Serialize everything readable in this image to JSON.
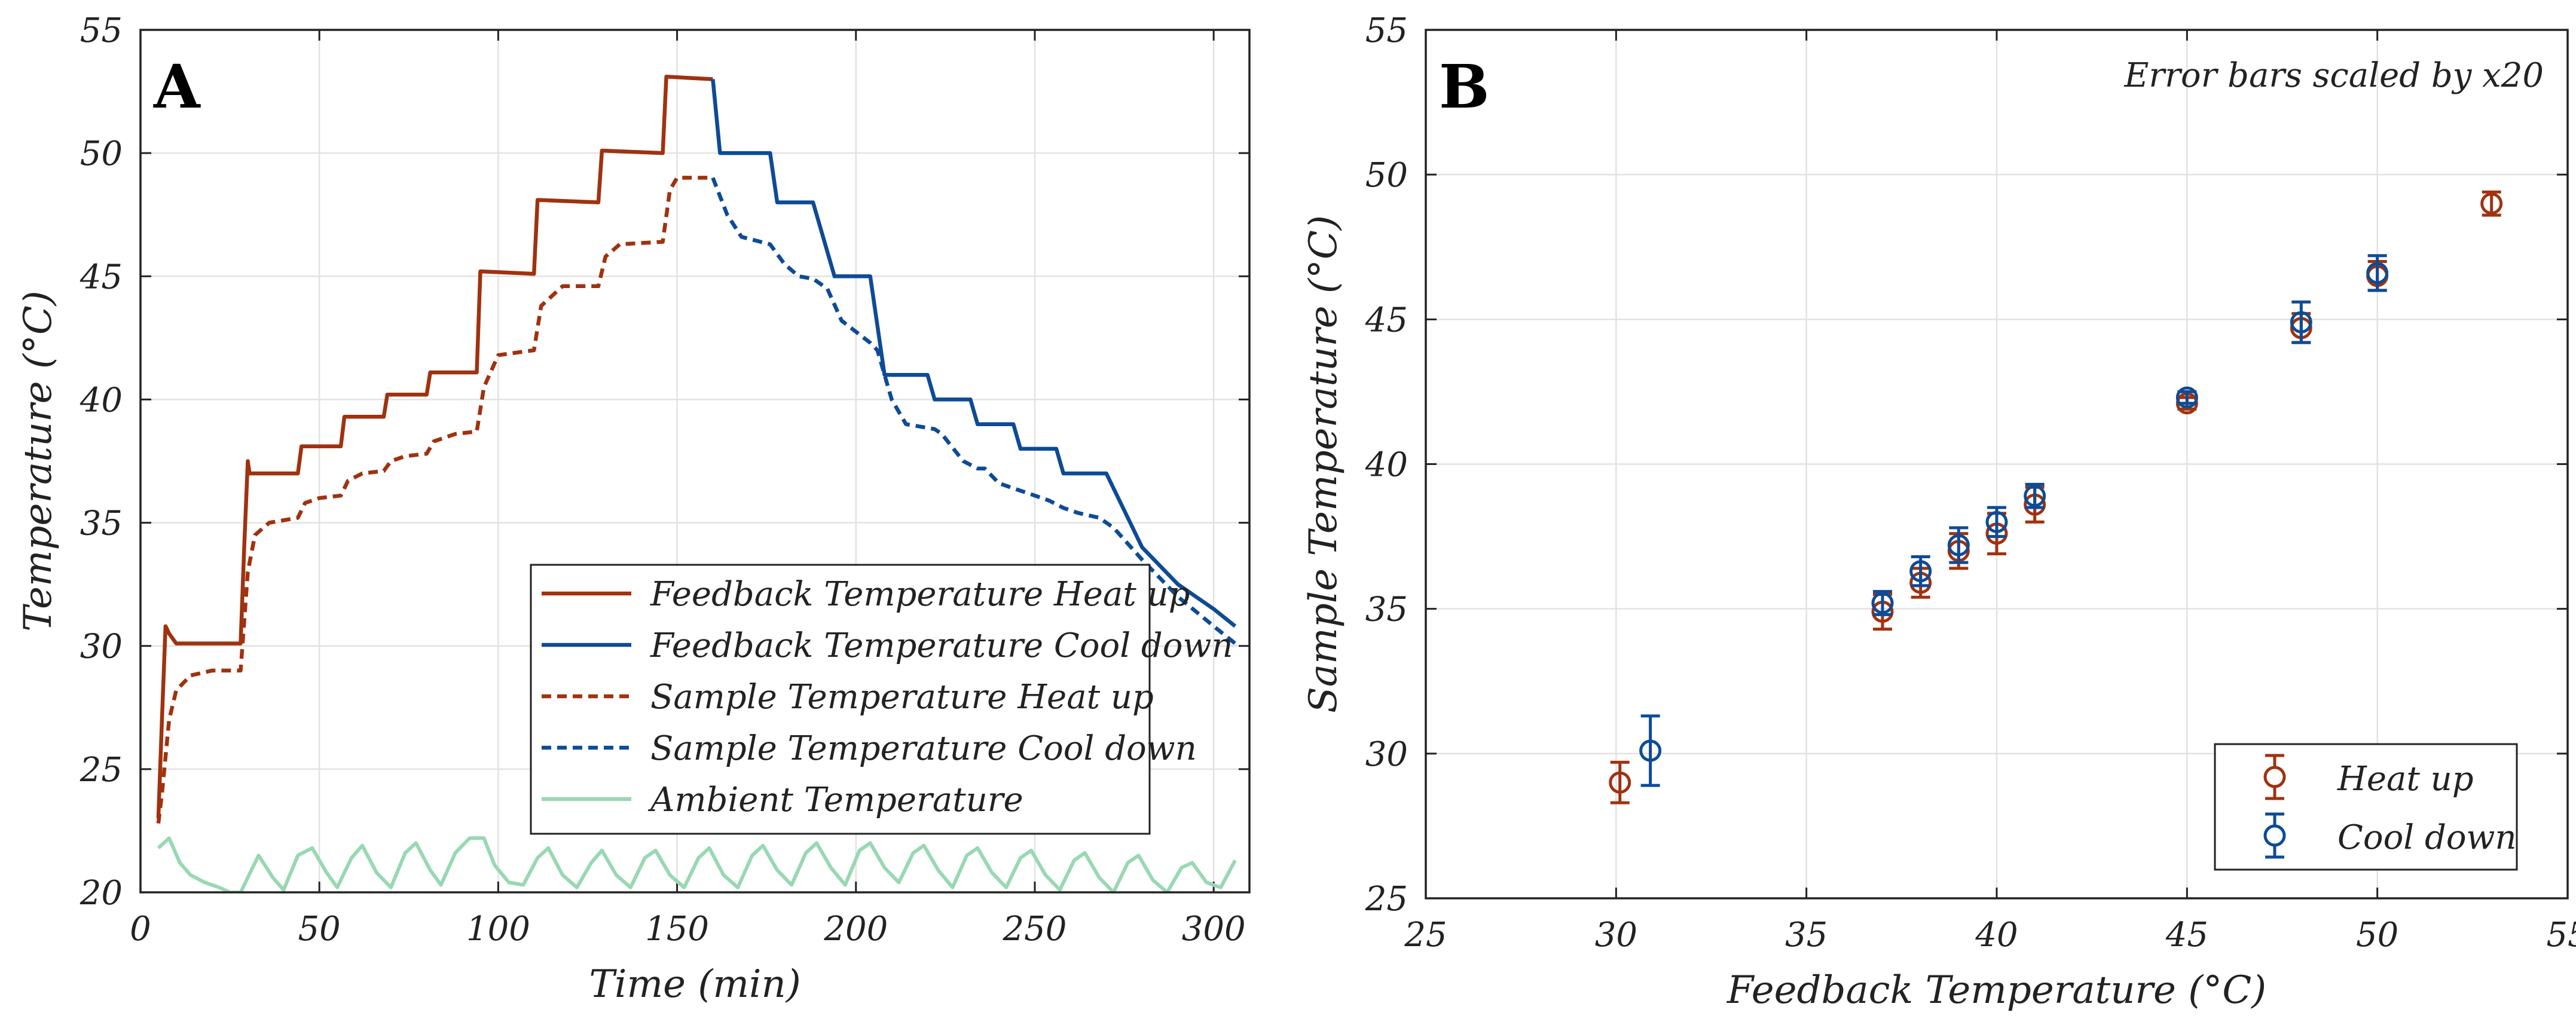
{
  "colors": {
    "heat": "#A0320F",
    "cool": "#0E4B96",
    "ambient": "#98D8B2",
    "grid": "#E2E2E2",
    "axis": "#222222"
  },
  "chart_data": [
    {
      "panel_label": "A",
      "type": "line",
      "xlabel": "Time (min)",
      "ylabel": "Temperature (°C)",
      "xlim": [
        0,
        310
      ],
      "ylim": [
        20,
        55
      ],
      "xticks": [
        "0",
        "50",
        "100",
        "150",
        "200",
        "250",
        "300"
      ],
      "yticks": [
        "20",
        "25",
        "30",
        "35",
        "40",
        "45",
        "50",
        "55"
      ],
      "grid": true,
      "legend_position": "lower-right",
      "series": [
        {
          "name": "Feedback Temperature Heat up",
          "color": "heat",
          "style": "solid",
          "x": [
            5,
            6,
            7,
            8,
            10,
            12,
            28,
            29,
            30,
            30.5,
            44,
            45,
            56,
            57,
            68,
            69,
            80,
            81,
            94,
            95,
            110,
            111,
            128,
            129,
            146,
            147,
            160
          ],
          "y": [
            23,
            27,
            30.8,
            30.5,
            30.1,
            30.1,
            30.1,
            34,
            37.5,
            37,
            37,
            38.1,
            38.1,
            39.3,
            39.3,
            40.2,
            40.2,
            41.1,
            41.1,
            45.2,
            45.1,
            48.1,
            48,
            50.1,
            50,
            53.1,
            53
          ]
        },
        {
          "name": "Feedback Temperature Cool down",
          "color": "cool",
          "style": "solid",
          "x": [
            160,
            162,
            176,
            178,
            188,
            194,
            204,
            208,
            220,
            222,
            232,
            234,
            244,
            246,
            256,
            258,
            268,
            270,
            275,
            280,
            290,
            300,
            306
          ],
          "y": [
            53,
            50,
            50,
            48,
            48,
            45,
            45,
            41,
            41,
            40,
            40,
            39,
            39,
            38,
            38,
            37,
            37,
            37,
            35.5,
            34,
            32.5,
            31.5,
            30.8
          ]
        },
        {
          "name": "Sample Temperature Heat up",
          "color": "heat",
          "style": "dashed",
          "x": [
            5,
            6,
            8,
            10,
            14,
            20,
            28,
            30,
            32,
            36,
            44,
            46,
            50,
            56,
            58,
            62,
            68,
            70,
            74,
            80,
            82,
            88,
            94,
            96,
            100,
            110,
            112,
            118,
            128,
            130,
            134,
            146,
            148,
            150,
            160
          ],
          "y": [
            22.8,
            24,
            27,
            28.2,
            28.8,
            29,
            29,
            33,
            34.5,
            35,
            35.2,
            35.8,
            36,
            36.1,
            36.7,
            37,
            37.1,
            37.5,
            37.7,
            37.8,
            38.3,
            38.6,
            38.7,
            40.5,
            41.8,
            42,
            43.8,
            44.6,
            44.6,
            45.8,
            46.3,
            46.4,
            48.5,
            49,
            49
          ]
        },
        {
          "name": "Sample Temperature Cool down",
          "color": "cool",
          "style": "dashed",
          "x": [
            160,
            164,
            168,
            176,
            180,
            184,
            188,
            192,
            196,
            204,
            206,
            210,
            214,
            222,
            224,
            230,
            234,
            236,
            240,
            246,
            248,
            254,
            258,
            262,
            268,
            272,
            280,
            290,
            300,
            306
          ],
          "y": [
            49,
            47.5,
            46.6,
            46.3,
            45.5,
            45,
            44.9,
            44.5,
            43.2,
            42.3,
            42,
            40,
            39,
            38.8,
            38.6,
            37.5,
            37.2,
            37.2,
            36.6,
            36.3,
            36.2,
            35.9,
            35.6,
            35.4,
            35.2,
            34.8,
            33.5,
            32,
            30.8,
            30.1
          ]
        },
        {
          "name": "Ambient Temperature",
          "color": "ambient",
          "style": "solid",
          "x": [
            5,
            8,
            11,
            14,
            18,
            22,
            25,
            28,
            33,
            37,
            40,
            44,
            48,
            52,
            55,
            59,
            62,
            66,
            70,
            74,
            77,
            81,
            84,
            88,
            92,
            96,
            99,
            103,
            107,
            111,
            114,
            118,
            122,
            126,
            129,
            133,
            137,
            141,
            144,
            148,
            152,
            156,
            159,
            163,
            167,
            171,
            174,
            178,
            182,
            186,
            189,
            193,
            197,
            201,
            204,
            208,
            212,
            216,
            219,
            223,
            227,
            231,
            234,
            238,
            242,
            246,
            249,
            253,
            257,
            261,
            264,
            268,
            272,
            276,
            279,
            283,
            287,
            291,
            294,
            298,
            302,
            306
          ],
          "y": [
            21.8,
            22.2,
            21.2,
            20.7,
            20.4,
            20.2,
            20,
            20,
            21.5,
            20.6,
            20.1,
            21.5,
            21.8,
            20.8,
            20.2,
            21.4,
            21.9,
            20.8,
            20.2,
            21.6,
            22,
            20.9,
            20.3,
            21.6,
            22.2,
            22.2,
            21.1,
            20.4,
            20.3,
            21.4,
            21.8,
            20.7,
            20.2,
            21.2,
            21.7,
            20.7,
            20.2,
            21.4,
            21.7,
            20.7,
            20.2,
            21.4,
            21.8,
            20.7,
            20.2,
            21.5,
            21.9,
            20.9,
            20.3,
            21.6,
            22,
            21,
            20.3,
            21.7,
            22,
            21,
            20.4,
            21.6,
            21.9,
            20.9,
            20.2,
            21.5,
            21.8,
            20.8,
            20.2,
            21.4,
            21.7,
            20.7,
            20.1,
            21.3,
            21.6,
            20.6,
            20,
            21.2,
            21.5,
            20.5,
            20,
            21,
            21.2,
            20.4,
            20.2,
            21.3
          ]
        }
      ]
    },
    {
      "panel_label": "B",
      "type": "scatter",
      "xlabel": "Feedback Temperature (°C)",
      "ylabel": "Sample Temperature (°C)",
      "xlim": [
        25,
        55
      ],
      "ylim": [
        25,
        55
      ],
      "xticks": [
        "25",
        "30",
        "35",
        "40",
        "45",
        "50",
        "55"
      ],
      "yticks": [
        "25",
        "30",
        "35",
        "40",
        "45",
        "50",
        "55"
      ],
      "grid": true,
      "annotation": "Error bars scaled by x20",
      "legend_position": "lower-right",
      "series": [
        {
          "name": "Heat up",
          "color": "heat",
          "x": [
            30.1,
            37,
            38,
            39,
            40,
            41,
            45,
            48,
            50,
            53
          ],
          "y": [
            29,
            34.9,
            35.9,
            37,
            37.6,
            38.6,
            42.1,
            44.7,
            46.5,
            49
          ],
          "err": [
            0.7,
            0.6,
            0.5,
            0.6,
            0.7,
            0.6,
            0.2,
            0.5,
            0.5,
            0.4
          ]
        },
        {
          "name": "Cool down",
          "color": "cool",
          "x": [
            30.9,
            37,
            38,
            39,
            40,
            41,
            45,
            48,
            50
          ],
          "y": [
            30.1,
            35.2,
            36.3,
            37.2,
            38,
            38.9,
            42.3,
            44.9,
            46.6
          ],
          "err": [
            1.2,
            0.4,
            0.5,
            0.6,
            0.5,
            0.4,
            0.2,
            0.7,
            0.6
          ]
        }
      ]
    }
  ]
}
